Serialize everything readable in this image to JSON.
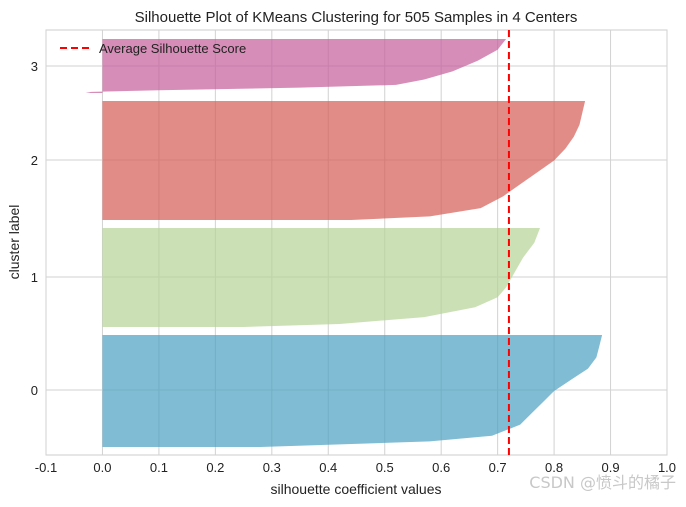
{
  "chart_data": {
    "type": "silhouette",
    "title": "Silhouette Plot of KMeans Clustering for 505 Samples in 4 Centers",
    "xlabel": "silhouette coefficient values",
    "ylabel": "cluster label",
    "xlim": [
      -0.1,
      1.0
    ],
    "xticks": [
      "-0.1",
      "0.0",
      "0.1",
      "0.2",
      "0.3",
      "0.4",
      "0.5",
      "0.6",
      "0.7",
      "0.8",
      "0.9",
      "1.0"
    ],
    "average_score": 0.72,
    "legend": {
      "label": "Average Silhouette Score",
      "placement": "top-left",
      "color": "#ff0000"
    },
    "grid": true,
    "clusters": [
      {
        "label": "0",
        "color": "#4aa0c0",
        "max": 0.885,
        "profile": [
          [
            0.0,
            0.885
          ],
          [
            0.1,
            0.88
          ],
          [
            0.2,
            0.875
          ],
          [
            0.3,
            0.86
          ],
          [
            0.4,
            0.83
          ],
          [
            0.5,
            0.8
          ],
          [
            0.6,
            0.78
          ],
          [
            0.7,
            0.76
          ],
          [
            0.8,
            0.74
          ],
          [
            0.9,
            0.69
          ],
          [
            0.95,
            0.58
          ],
          [
            1.0,
            0.28
          ]
        ]
      },
      {
        "label": "1",
        "color": "#b5d395",
        "max": 0.775,
        "profile": [
          [
            0.0,
            0.775
          ],
          [
            0.15,
            0.765
          ],
          [
            0.3,
            0.745
          ],
          [
            0.5,
            0.725
          ],
          [
            0.6,
            0.715
          ],
          [
            0.7,
            0.7
          ],
          [
            0.8,
            0.66
          ],
          [
            0.9,
            0.57
          ],
          [
            0.97,
            0.42
          ],
          [
            1.0,
            0.25
          ]
        ]
      },
      {
        "label": "2",
        "color": "#d65b55",
        "max": 0.855,
        "profile": [
          [
            0.0,
            0.855
          ],
          [
            0.1,
            0.85
          ],
          [
            0.2,
            0.845
          ],
          [
            0.3,
            0.835
          ],
          [
            0.4,
            0.82
          ],
          [
            0.5,
            0.8
          ],
          [
            0.6,
            0.77
          ],
          [
            0.7,
            0.74
          ],
          [
            0.8,
            0.71
          ],
          [
            0.9,
            0.67
          ],
          [
            0.97,
            0.58
          ],
          [
            1.0,
            0.44
          ]
        ]
      },
      {
        "label": "3",
        "color": "#c45d9a",
        "max": 0.715,
        "profile": [
          [
            0.0,
            0.715
          ],
          [
            0.2,
            0.7
          ],
          [
            0.4,
            0.665
          ],
          [
            0.6,
            0.62
          ],
          [
            0.75,
            0.57
          ],
          [
            0.85,
            0.52
          ],
          [
            0.9,
            0.35
          ],
          [
            0.95,
            0.1
          ],
          [
            0.98,
            -0.02
          ],
          [
            1.0,
            -0.03
          ]
        ]
      }
    ]
  },
  "watermark": "CSDN @愤斗的橘子"
}
